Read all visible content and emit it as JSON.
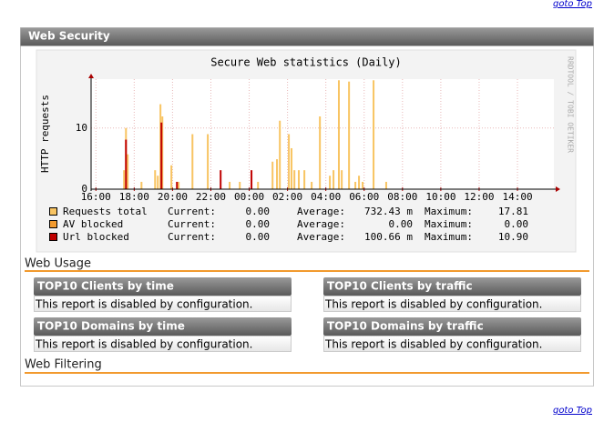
{
  "links": {
    "goto_top": "goto Top"
  },
  "panel": {
    "title": "Web Security"
  },
  "chart_data": {
    "type": "bar",
    "title": "Secure Web statistics (Daily)",
    "y_label": "HTTP requests",
    "watermark": "RRDTOOL / TOBI OETIKER",
    "xlim": [
      -0.25,
      23.9
    ],
    "ylim": [
      0,
      18
    ],
    "grid": true,
    "xticks": [
      {
        "value": 0,
        "label": "16:00"
      },
      {
        "value": 2,
        "label": "18:00"
      },
      {
        "value": 4,
        "label": "20:00"
      },
      {
        "value": 6,
        "label": "22:00"
      },
      {
        "value": 8,
        "label": "00:00"
      },
      {
        "value": 10,
        "label": "02:00"
      },
      {
        "value": 12,
        "label": "04:00"
      },
      {
        "value": 14,
        "label": "06:00"
      },
      {
        "value": 16,
        "label": "08:00"
      },
      {
        "value": 18,
        "label": "10:00"
      },
      {
        "value": 20,
        "label": "12:00"
      },
      {
        "value": 22,
        "label": "14:00"
      }
    ],
    "yticks": [
      0,
      10
    ],
    "stat_labels": [
      "Current:",
      "Average:",
      "Maximum:"
    ],
    "series": [
      {
        "name": "Requests total",
        "color": "#f8c462",
        "stats": [
          "0.00",
          "732.43 m",
          "17.81"
        ],
        "x": [
          1.47,
          1.57,
          1.66,
          2.38,
          3.09,
          3.23,
          3.37,
          3.47,
          3.94,
          4.32,
          5.04,
          5.84,
          6.98,
          7.51,
          8.46,
          9.22,
          9.45,
          9.6,
          10.07,
          10.21,
          10.36,
          10.59,
          10.88,
          11.26,
          11.69,
          12.21,
          12.4,
          12.68,
          12.83,
          13.21,
          13.54,
          13.73,
          13.92,
          14.49,
          15.15
        ],
        "values": [
          3.1,
          10,
          5.7,
          1.2,
          3.1,
          2.2,
          13.9,
          11.9,
          3.9,
          1.2,
          9,
          9,
          1.2,
          1.2,
          1.2,
          4.5,
          4.9,
          11.2,
          9,
          6.7,
          3.1,
          3.1,
          3.1,
          1.2,
          11.9,
          2.2,
          3.1,
          17.81,
          3.1,
          17.6,
          1.2,
          2.2,
          1.2,
          17.81,
          1.2
        ]
      },
      {
        "name": "AV blocked",
        "color": "#f29a2e",
        "stats": [
          "0.00",
          "0.00",
          "0.00"
        ],
        "x": [],
        "values": []
      },
      {
        "name": "Url blocked",
        "color": "#c00000",
        "stats": [
          "0.00",
          "100.66 m",
          "10.90"
        ],
        "x": [
          1.57,
          3.42,
          4.23,
          6.51,
          8.12
        ],
        "values": [
          8.1,
          10.9,
          1.2,
          3.1,
          3.1
        ]
      }
    ]
  },
  "sections": [
    {
      "title": "Web Usage",
      "reports": [
        {
          "title": "TOP10 Clients by time",
          "message": "This report is disabled by configuration."
        },
        {
          "title": "TOP10 Clients by traffic",
          "message": "This report is disabled by configuration."
        },
        {
          "title": "TOP10 Domains by time",
          "message": "This report is disabled by configuration."
        },
        {
          "title": "TOP10 Domains by traffic",
          "message": "This report is disabled by configuration."
        }
      ]
    },
    {
      "title": "Web Filtering"
    }
  ]
}
